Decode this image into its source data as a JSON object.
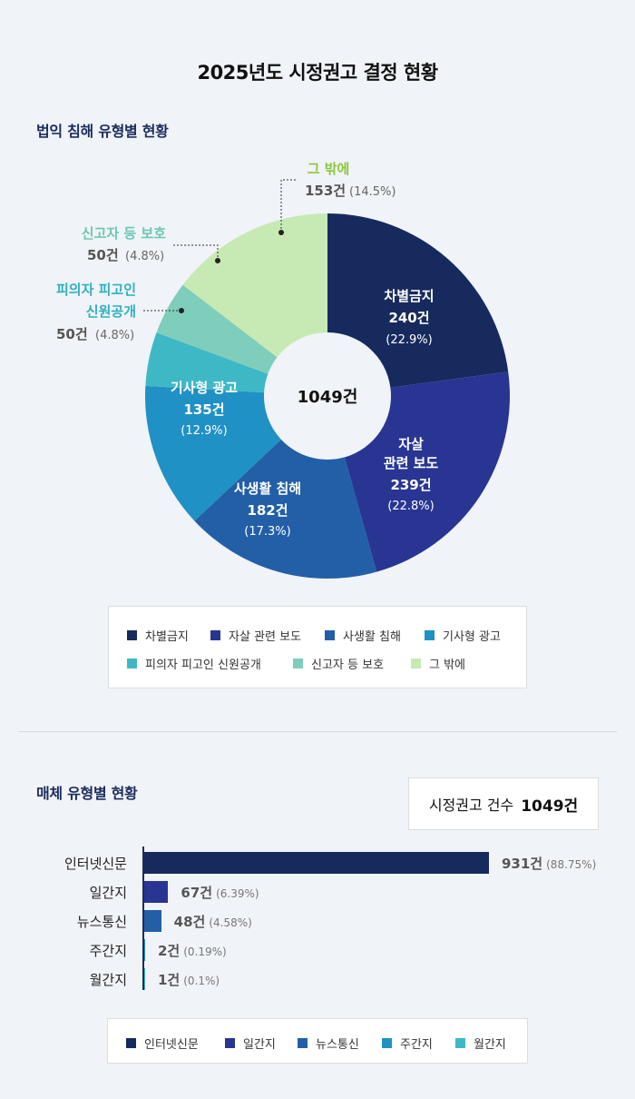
{
  "title": "2025년도 시정권고 결정 현황",
  "colors": {
    "c1": "#172a5e",
    "c2": "#283593",
    "c3": "#225fa6",
    "c4": "#2091c4",
    "c5": "#3fb8c6",
    "c6": "#7fcdbb",
    "c7": "#c7e9b4",
    "green_label": "#8cc63f",
    "teal_label": "#2fb1c0",
    "mint_label": "#6cc7b5"
  },
  "donut_section": {
    "title": "법익 침해 유형별 현황",
    "center_total": "1049건"
  },
  "donut_labels": {
    "s1": {
      "name": "차별금지",
      "count": "240건",
      "pct": "(22.9%)"
    },
    "s2": {
      "name_l1": "자살",
      "name_l2": "관련 보도",
      "count": "239건",
      "pct": "(22.8%)"
    },
    "s3": {
      "name": "사생활 침해",
      "count": "182건",
      "pct": "(17.3%)"
    },
    "s4": {
      "name": "기사형 광고",
      "count": "135건",
      "pct": "(12.9%)"
    },
    "s5": {
      "name_l1": "피의자 피고인",
      "name_l2": "신원공개",
      "count": "50건",
      "pct": "(4.8%)"
    },
    "s6": {
      "name": "신고자 등 보호",
      "count": "50건",
      "pct": "(4.8%)"
    },
    "s7": {
      "name": "그 밖에",
      "count": "153건",
      "pct": "(14.5%)"
    }
  },
  "donut_legend": [
    "차별금지",
    "자살 관련 보도",
    "사생활 침해",
    "기사형 광고",
    "피의자 피고인 신원공개",
    "신고자 등 보호",
    "그 밖에"
  ],
  "bar_section": {
    "title": "매체 유형별 현황",
    "count_label": "시정권고 건수",
    "count_value": "1049건"
  },
  "bar_rows": [
    {
      "label": "인터넷신문",
      "count": "931건",
      "pct": "(88.75%)"
    },
    {
      "label": "일간지",
      "count": "67건",
      "pct": "(6.39%)"
    },
    {
      "label": "뉴스통신",
      "count": "48건",
      "pct": "(4.58%)"
    },
    {
      "label": "주간지",
      "count": "2건",
      "pct": "(0.19%)"
    },
    {
      "label": "월간지",
      "count": "1건",
      "pct": "(0.1%)"
    }
  ],
  "bar_legend": [
    "인터넷신문",
    "일간지",
    "뉴스통신",
    "주간지",
    "월간지"
  ],
  "chart_data": [
    {
      "type": "pie",
      "title": "법익 침해 유형별 현황",
      "categories": [
        "차별금지",
        "자살 관련 보도",
        "사생활 침해",
        "기사형 광고",
        "피의자 피고인 신원공개",
        "신고자 등 보호",
        "그 밖에"
      ],
      "values": [
        240,
        239,
        182,
        135,
        50,
        50,
        153
      ],
      "percentages": [
        22.9,
        22.8,
        17.3,
        12.9,
        4.8,
        4.8,
        14.5
      ],
      "total": 1049,
      "legend": "bottom"
    },
    {
      "type": "bar",
      "title": "매체 유형별 현황",
      "categories": [
        "인터넷신문",
        "일간지",
        "뉴스통신",
        "주간지",
        "월간지"
      ],
      "values": [
        931,
        67,
        48,
        2,
        1
      ],
      "percentages": [
        88.75,
        6.39,
        4.58,
        0.19,
        0.1
      ],
      "orientation": "horizontal",
      "legend": "bottom"
    }
  ]
}
